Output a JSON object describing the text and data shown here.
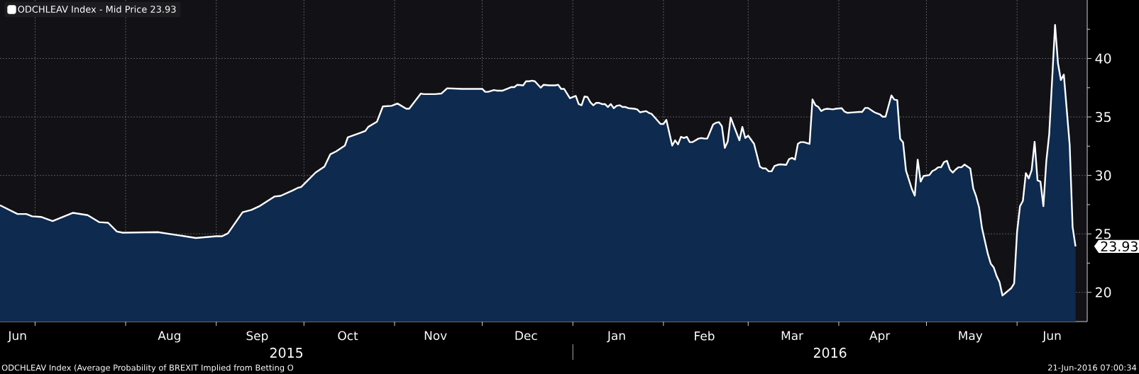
{
  "chart_data": {
    "type": "area",
    "x": [
      "2015-06-19",
      "2015-06-25",
      "2015-06-28",
      "2015-06-30",
      "2015-07-03",
      "2015-07-07",
      "2015-07-14",
      "2015-07-19",
      "2015-07-23",
      "2015-07-26",
      "2015-07-29",
      "2015-07-31",
      "2015-08-12",
      "2015-08-25",
      "2015-09-01",
      "2015-09-03",
      "2015-09-05",
      "2015-09-10",
      "2015-09-13",
      "2015-09-16",
      "2015-09-21",
      "2015-09-23",
      "2015-09-27",
      "2015-09-29",
      "2015-09-30",
      "2015-10-05",
      "2015-10-08",
      "2015-10-10",
      "2015-10-12",
      "2015-10-15",
      "2015-10-16",
      "2015-10-22",
      "2015-10-23",
      "2015-10-26",
      "2015-10-28",
      "2015-10-31",
      "2015-11-02",
      "2015-11-05",
      "2015-11-06",
      "2015-11-10",
      "2015-11-11",
      "2015-11-15",
      "2015-11-17",
      "2015-11-19",
      "2015-11-24",
      "2015-12-01",
      "2015-12-02",
      "2015-12-03",
      "2015-12-05",
      "2015-12-06",
      "2015-12-08",
      "2015-12-10",
      "2015-12-11",
      "2015-12-12",
      "2015-12-13",
      "2015-12-15",
      "2015-12-16",
      "2015-12-17",
      "2015-12-18",
      "2015-12-19",
      "2015-12-21",
      "2015-12-22",
      "2015-12-24",
      "2015-12-26",
      "2015-12-27",
      "2015-12-28",
      "2015-12-29",
      "2015-12-31",
      "2016-01-02",
      "2016-01-03",
      "2016-01-04",
      "2016-01-05",
      "2016-01-06",
      "2016-01-07",
      "2016-01-08",
      "2016-01-09",
      "2016-01-10",
      "2016-01-11",
      "2016-01-12",
      "2016-01-13",
      "2016-01-14",
      "2016-01-15",
      "2016-01-16",
      "2016-01-17",
      "2016-01-18",
      "2016-01-19",
      "2016-01-20",
      "2016-01-22",
      "2016-01-23",
      "2016-01-24",
      "2016-01-26",
      "2016-01-27",
      "2016-01-28",
      "2016-01-31",
      "2016-02-01",
      "2016-02-02",
      "2016-02-04",
      "2016-02-05",
      "2016-02-06",
      "2016-02-07",
      "2016-02-08",
      "2016-02-09",
      "2016-02-10",
      "2016-02-11",
      "2016-02-13",
      "2016-02-14",
      "2016-02-15",
      "2016-02-16",
      "2016-02-18",
      "2016-02-19",
      "2016-02-20",
      "2016-02-21",
      "2016-02-22",
      "2016-02-23",
      "2016-02-24",
      "2016-02-27",
      "2016-02-28",
      "2016-02-29",
      "2016-03-01",
      "2016-03-03",
      "2016-03-05",
      "2016-03-06",
      "2016-03-07",
      "2016-03-08",
      "2016-03-09",
      "2016-03-10",
      "2016-03-11",
      "2016-03-12",
      "2016-03-14",
      "2016-03-15",
      "2016-03-16",
      "2016-03-17",
      "2016-03-18",
      "2016-03-19",
      "2016-03-20",
      "2016-03-22",
      "2016-03-23",
      "2016-03-24",
      "2016-03-25",
      "2016-03-26",
      "2016-03-27",
      "2016-03-28",
      "2016-03-30",
      "2016-03-31",
      "2016-04-02",
      "2016-04-03",
      "2016-04-04",
      "2016-04-06",
      "2016-04-08",
      "2016-04-09",
      "2016-04-10",
      "2016-04-11",
      "2016-04-13",
      "2016-04-14",
      "2016-04-15",
      "2016-04-16",
      "2016-04-17",
      "2016-04-19",
      "2016-04-20",
      "2016-04-21",
      "2016-04-22",
      "2016-04-23",
      "2016-04-24",
      "2016-04-26",
      "2016-04-27",
      "2016-04-28",
      "2016-04-29",
      "2016-04-30",
      "2016-05-02",
      "2016-05-03",
      "2016-05-04",
      "2016-05-05",
      "2016-05-06",
      "2016-05-07",
      "2016-05-08",
      "2016-05-09",
      "2016-05-10",
      "2016-05-11",
      "2016-05-12",
      "2016-05-13",
      "2016-05-14",
      "2016-05-16",
      "2016-05-17",
      "2016-05-18",
      "2016-05-19",
      "2016-05-20",
      "2016-05-22",
      "2016-05-23",
      "2016-05-24",
      "2016-05-25",
      "2016-05-26",
      "2016-05-27",
      "2016-05-28",
      "2016-05-29",
      "2016-05-30",
      "2016-05-31",
      "2016-06-01",
      "2016-06-02",
      "2016-06-03",
      "2016-06-04",
      "2016-06-05",
      "2016-06-06",
      "2016-06-07",
      "2016-06-08",
      "2016-06-09",
      "2016-06-10",
      "2016-06-11",
      "2016-06-12",
      "2016-06-14",
      "2016-06-15",
      "2016-06-16",
      "2016-06-17",
      "2016-06-19",
      "2016-06-20",
      "2016-06-21"
    ],
    "series": [
      {
        "name": "ODCHLEAV Index - Mid Price 23.93",
        "color": "#ffffff",
        "values": [
          27.45,
          26.7,
          26.7,
          26.5,
          26.45,
          26.1,
          26.8,
          26.6,
          26.0,
          25.95,
          25.2,
          25.1,
          25.15,
          24.65,
          24.8,
          24.8,
          25.05,
          26.85,
          27.05,
          27.4,
          28.2,
          28.25,
          28.7,
          28.95,
          29.0,
          30.25,
          30.75,
          31.8,
          32.05,
          32.55,
          33.25,
          33.8,
          34.15,
          34.6,
          35.9,
          35.95,
          36.15,
          35.7,
          35.7,
          37.0,
          36.95,
          36.95,
          37.0,
          37.45,
          37.4,
          37.4,
          37.15,
          37.15,
          37.3,
          37.25,
          37.25,
          37.45,
          37.55,
          37.55,
          37.75,
          37.7,
          38.05,
          38.05,
          38.1,
          38.05,
          37.5,
          37.75,
          37.7,
          37.7,
          37.75,
          37.4,
          37.4,
          36.6,
          36.8,
          36.1,
          36.0,
          36.75,
          36.7,
          36.25,
          36.0,
          36.2,
          36.2,
          36.1,
          36.1,
          35.85,
          36.1,
          35.75,
          35.95,
          36.0,
          35.85,
          35.85,
          35.75,
          35.7,
          35.65,
          35.4,
          35.5,
          35.35,
          35.25,
          34.4,
          34.4,
          34.75,
          32.55,
          33.0,
          32.65,
          33.3,
          33.2,
          33.3,
          32.85,
          32.85,
          33.15,
          33.2,
          33.15,
          33.15,
          34.35,
          34.5,
          34.55,
          34.2,
          32.35,
          32.9,
          34.95,
          33.0,
          34.15,
          33.2,
          33.4,
          32.7,
          30.75,
          30.6,
          30.6,
          30.35,
          30.35,
          30.8,
          30.9,
          30.95,
          30.9,
          31.4,
          31.5,
          31.35,
          32.7,
          32.85,
          32.85,
          32.7,
          36.5,
          36.0,
          35.85,
          35.5,
          35.65,
          35.7,
          35.65,
          35.7,
          35.75,
          35.45,
          35.35,
          35.39,
          35.43,
          35.43,
          35.77,
          35.77,
          35.43,
          35.31,
          35.23,
          35.02,
          35.02,
          36.84,
          36.48,
          36.44,
          33.13,
          32.82,
          30.41,
          28.84,
          28.27,
          31.35,
          29.47,
          29.95,
          30.03,
          30.37,
          30.49,
          30.7,
          30.7,
          31.14,
          31.25,
          30.51,
          30.24,
          30.51,
          30.7,
          30.7,
          30.93,
          30.58,
          28.9,
          28.21,
          27.27,
          25.49,
          23.29,
          22.45,
          22.14,
          21.4,
          20.88,
          19.73,
          19.94,
          20.15,
          20.36,
          20.77,
          25.17,
          27.37,
          27.83,
          30.2,
          29.74,
          30.45,
          32.88,
          29.57,
          29.47,
          27.37,
          31.2,
          33.55,
          42.87,
          39.58,
          38.16,
          38.62,
          32.61,
          25.59,
          23.93
        ]
      }
    ],
    "xlim": [
      "2015-06-19",
      "2016-06-25"
    ],
    "xticks": [
      {
        "value": "2015-07-01",
        "label": null
      },
      {
        "value": "2015-08-01",
        "label": null
      },
      {
        "value": "2015-09-01",
        "label": null
      },
      {
        "value": "2015-10-01",
        "label": null
      },
      {
        "value": "2015-11-01",
        "label": null
      },
      {
        "value": "2015-12-01",
        "label": null
      },
      {
        "value": "2016-01-01",
        "label": null
      },
      {
        "value": "2016-02-01",
        "label": null
      },
      {
        "value": "2016-03-01",
        "label": null
      },
      {
        "value": "2016-04-01",
        "label": null
      },
      {
        "value": "2016-05-01",
        "label": null
      },
      {
        "value": "2016-06-01",
        "label": null
      },
      {
        "value": "2015-06-25",
        "label": "Jun"
      },
      {
        "value": "2015-08-16",
        "label": "Aug"
      },
      {
        "value": "2015-09-15",
        "label": "Sep"
      },
      {
        "value": "2015-10-16",
        "label": "Oct"
      },
      {
        "value": "2015-11-15",
        "label": "Nov"
      },
      {
        "value": "2015-12-16",
        "label": "Dec"
      },
      {
        "value": "2016-01-16",
        "label": "Jan"
      },
      {
        "value": "2016-02-15",
        "label": "Feb"
      },
      {
        "value": "2016-03-16",
        "label": "Mar"
      },
      {
        "value": "2016-04-15",
        "label": "Apr"
      },
      {
        "value": "2016-05-16",
        "label": "May"
      },
      {
        "value": "2016-06-13",
        "label": "Jun"
      }
    ],
    "ylim": [
      17.5,
      45
    ],
    "yticks": [
      20,
      25,
      30,
      35,
      40,
      {
        "value": 22.5,
        "label": null
      },
      {
        "value": 27.5,
        "label": null
      },
      {
        "value": 32.5,
        "label": null
      },
      {
        "value": 37.5,
        "label": null
      },
      {
        "value": 42.5,
        "label": null
      }
    ],
    "grid": true,
    "legend": "top left",
    "annotations": [
      "2015",
      "2016",
      "ODCHLEAV Index (Average Probability of BREXIT Implied from Betting O",
      "21-Jun-2016 07:00:34",
      {
        "text": "23.93",
        "x": "2016-06-21",
        "y": 23.93
      }
    ]
  }
}
